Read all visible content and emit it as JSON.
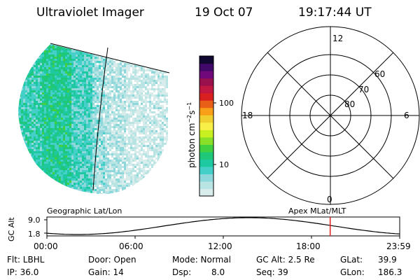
{
  "header": {
    "instrument": "Ultraviolet Imager",
    "date": "19 Oct 07",
    "time": "19:17:44 UT"
  },
  "colorbar": {
    "unit_label": "photon cm",
    "unit_exp1": "−2",
    "unit_s": "s",
    "unit_exp2": "−1",
    "ticks": [
      "100",
      "10"
    ],
    "colors": [
      "#d8ecec",
      "#b8e4e4",
      "#8ed8dc",
      "#44d0c8",
      "#1ec8a0",
      "#1ec878",
      "#40d040",
      "#88e028",
      "#c8f020",
      "#f8f048",
      "#f0d030",
      "#f8a018",
      "#e86018",
      "#d82020",
      "#c01840",
      "#98104c",
      "#70087c",
      "#400868",
      "#100830"
    ]
  },
  "polar": {
    "mlt_labels": [
      "12",
      "18",
      "6",
      "0"
    ],
    "lat_labels": [
      "60",
      "70",
      "80"
    ]
  },
  "timeline": {
    "left_title": "Geographic Lat/Lon",
    "right_title": "Apex MLat/MLT",
    "axis_label": "GC Alt",
    "y_ticks": [
      "9.0",
      "1.8"
    ],
    "x_ticks": [
      "00:00",
      "06:00",
      "12:00",
      "18:00",
      "23:59"
    ],
    "marker_fraction": 0.803,
    "marker_color": "#e02020"
  },
  "info": {
    "row1": {
      "flt": "Flt: LBHL",
      "door": "Door: Open",
      "mode": "Mode: Normal",
      "gcalt": "GC Alt: 2.5 Re",
      "glat_label": "GLat:",
      "glat_value": "39.9"
    },
    "row2": {
      "ip": "IP: 36.0",
      "gain": "Gain: 14",
      "dsp_label": "Dsp:",
      "dsp_value": "8.0",
      "seq": "Seq: 39",
      "glon_label": "GLon:",
      "glon_value": "186.3"
    }
  }
}
